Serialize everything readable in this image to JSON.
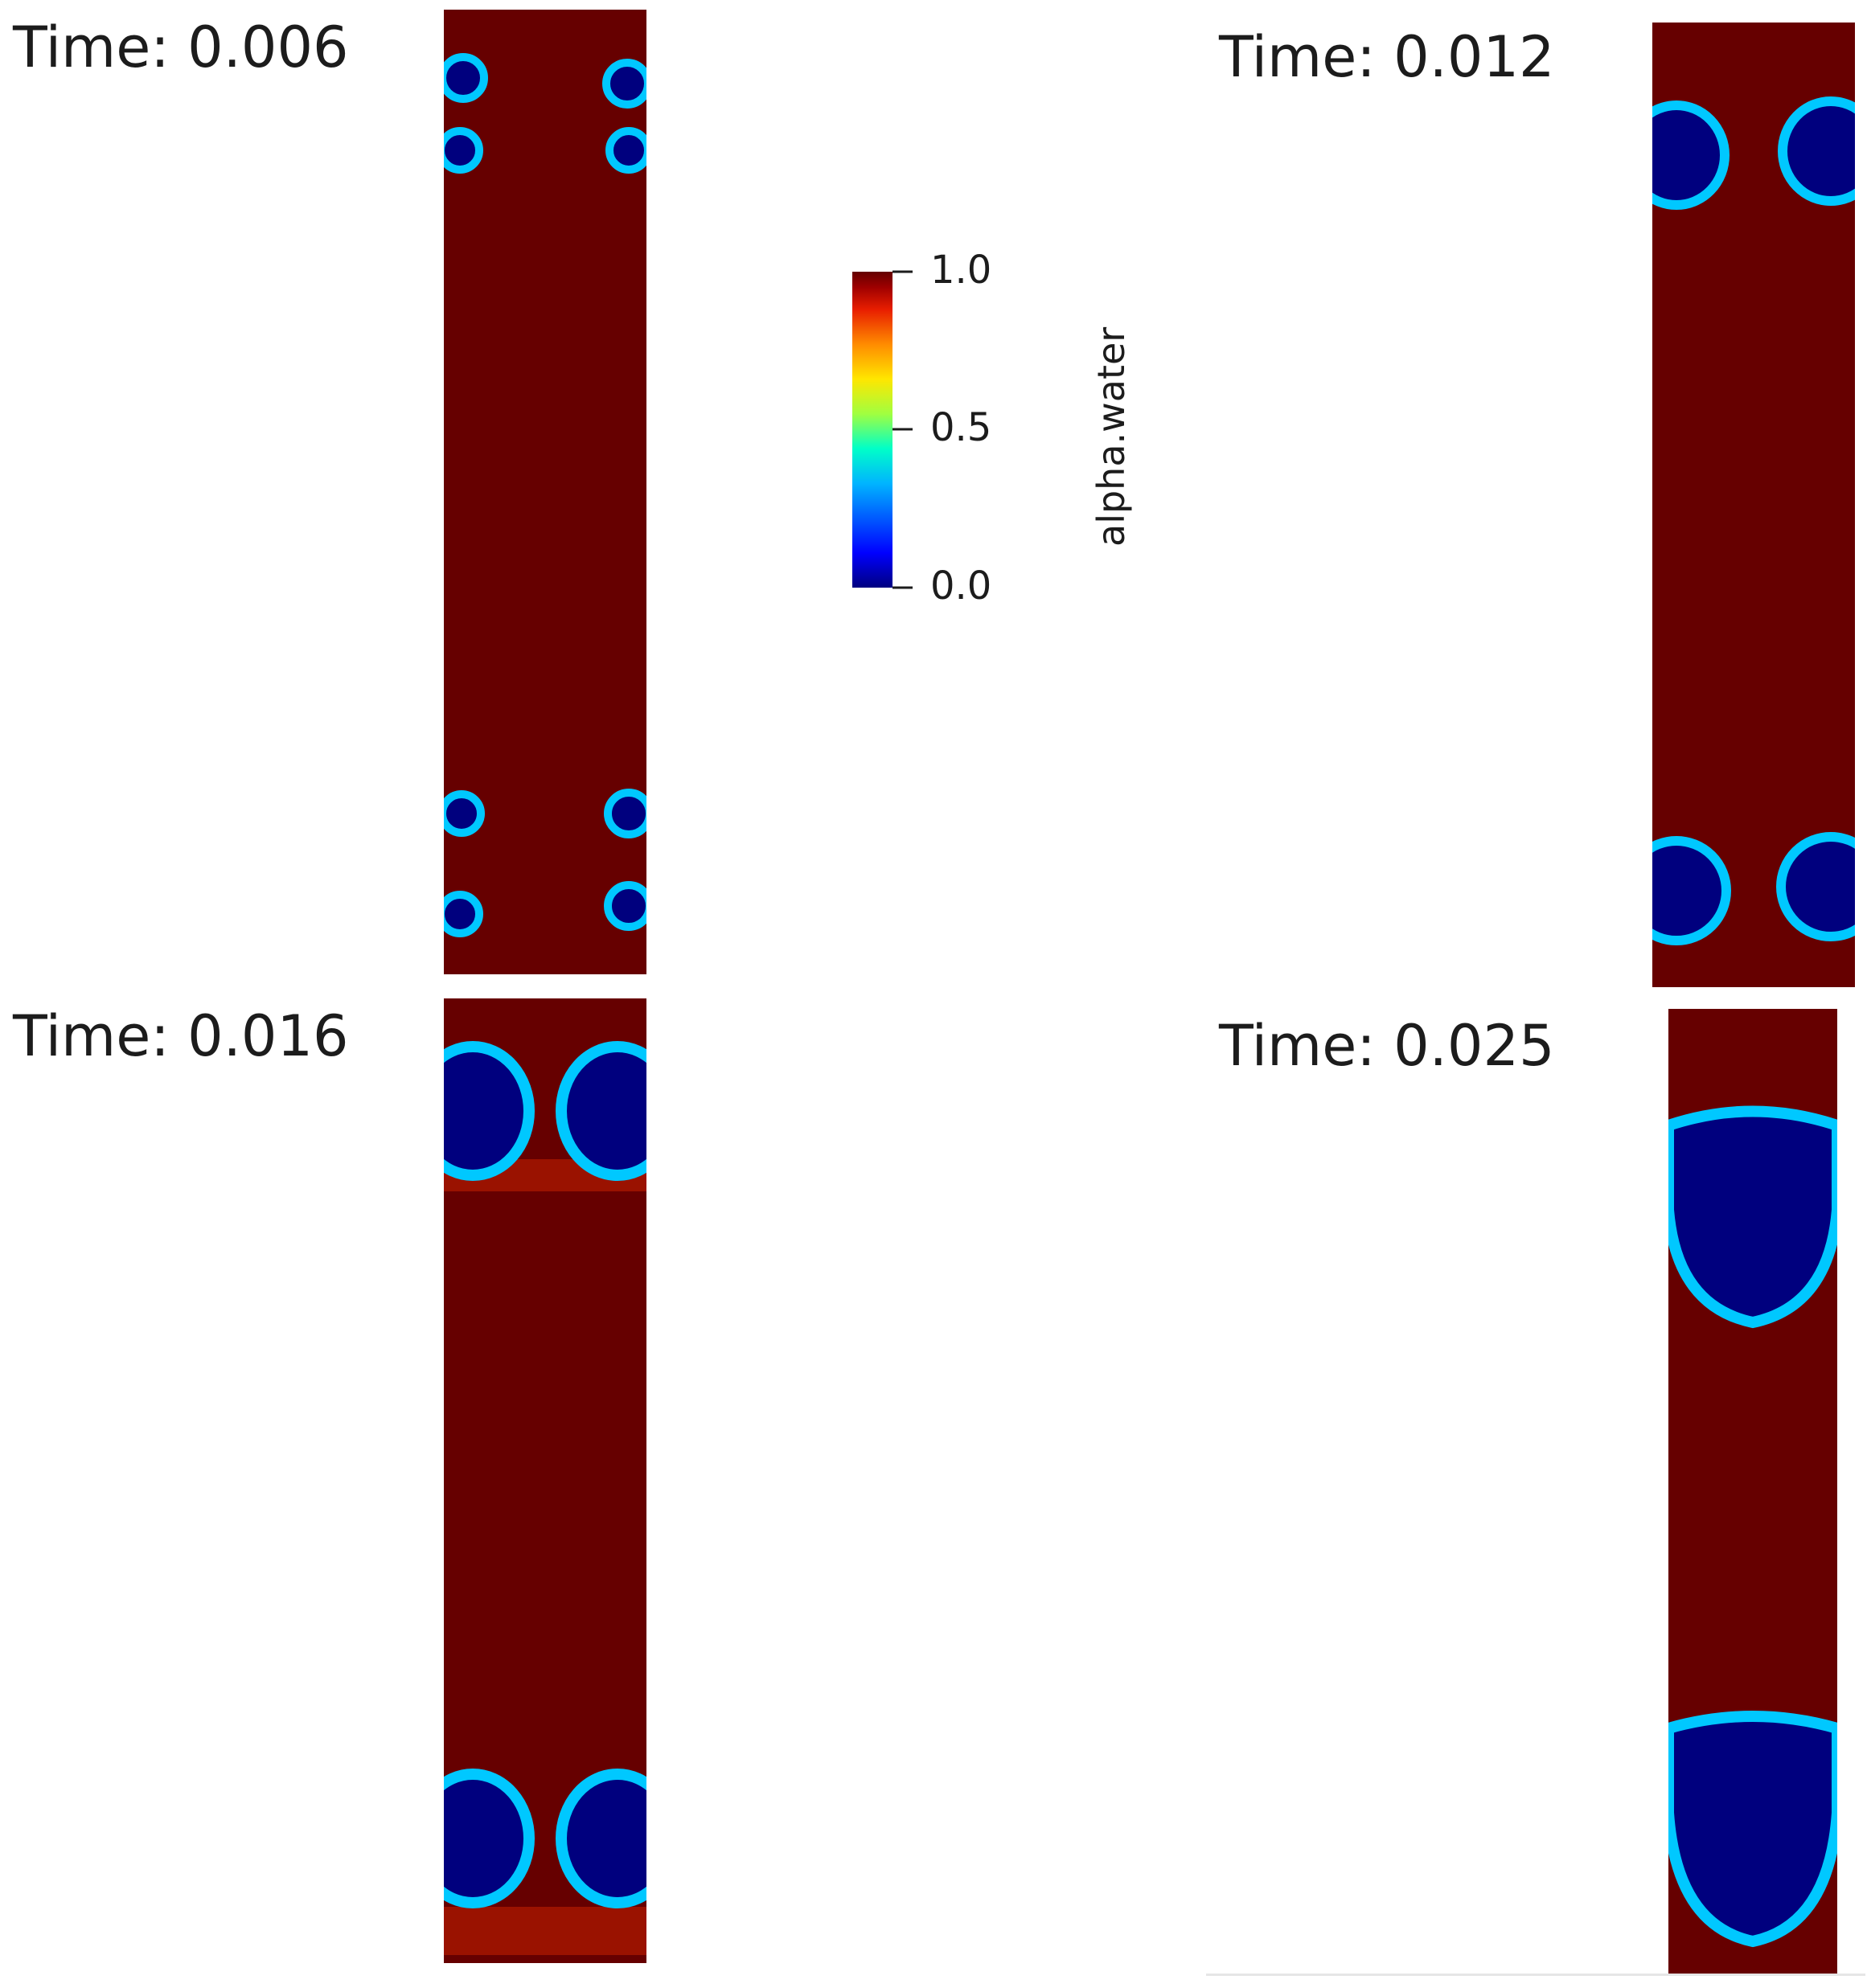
{
  "panels": [
    {
      "id": "p1",
      "time_label": "Time: 0.006",
      "time": 0.006
    },
    {
      "id": "p2",
      "time_label": "Time: 0.012",
      "time": 0.012
    },
    {
      "id": "p3",
      "time_label": "Time: 0.016",
      "time": 0.016
    },
    {
      "id": "p4",
      "time_label": "Time: 0.025",
      "time": 0.025
    }
  ],
  "colorbar": {
    "title": "alpha.water",
    "ticks": [
      "1.0",
      "0.5",
      "0.0"
    ],
    "range": [
      0.0,
      1.0
    ],
    "colormap": [
      "#000080",
      "#0000ff",
      "#00b4ff",
      "#00ffc8",
      "#a0ff40",
      "#ffe600",
      "#ff8c00",
      "#e81e00",
      "#a00000",
      "#640000"
    ]
  },
  "colors": {
    "water": "#660000",
    "air": "#00007e"
  }
}
